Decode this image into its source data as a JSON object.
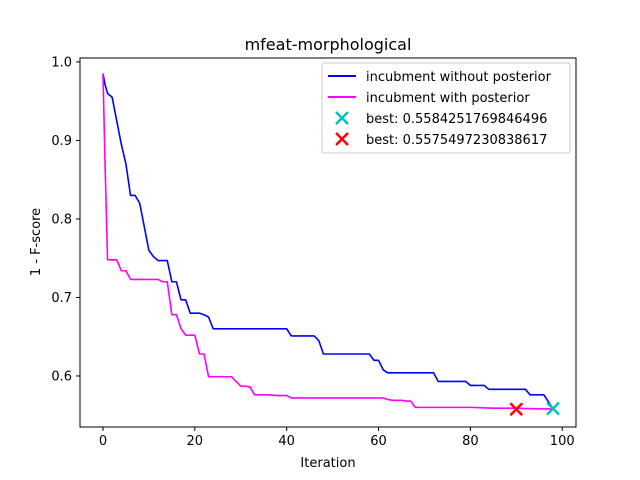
{
  "chart_data": {
    "type": "line",
    "title": "mfeat-morphological",
    "xlabel": "Iteration",
    "ylabel": "1 - F-score",
    "xlim": [
      -5,
      103
    ],
    "ylim": [
      0.535,
      1.005
    ],
    "xticks": [
      0,
      20,
      40,
      60,
      80,
      100
    ],
    "yticks": [
      0.6,
      0.7,
      0.8,
      0.9,
      1.0
    ],
    "xtick_labels": [
      "0",
      "20",
      "40",
      "60",
      "80",
      "100"
    ],
    "ytick_labels": [
      "0.6",
      "0.7",
      "0.8",
      "0.9",
      "1.0"
    ],
    "grid": false,
    "legend_position": "top-right",
    "series": [
      {
        "name": "incubment without posterior",
        "color": "#0000ff",
        "x": [
          0,
          0.5,
          1,
          2,
          3,
          4,
          5,
          6,
          7,
          8,
          9,
          10,
          11,
          12,
          13,
          14,
          15,
          16,
          17,
          18,
          19,
          20,
          21,
          22,
          23,
          24,
          25,
          30,
          35,
          40,
          41,
          45,
          46,
          47,
          48,
          50,
          55,
          58,
          59,
          60,
          61,
          62,
          65,
          70,
          72,
          73,
          75,
          78,
          79,
          80,
          83,
          84,
          85,
          88,
          90,
          92,
          93,
          95,
          96,
          98
        ],
        "y": [
          0.985,
          0.97,
          0.96,
          0.955,
          0.925,
          0.895,
          0.87,
          0.83,
          0.83,
          0.82,
          0.79,
          0.76,
          0.752,
          0.747,
          0.747,
          0.747,
          0.72,
          0.72,
          0.697,
          0.697,
          0.68,
          0.68,
          0.68,
          0.678,
          0.675,
          0.66,
          0.66,
          0.66,
          0.66,
          0.66,
          0.651,
          0.651,
          0.651,
          0.645,
          0.628,
          0.628,
          0.628,
          0.628,
          0.62,
          0.62,
          0.608,
          0.604,
          0.604,
          0.604,
          0.604,
          0.593,
          0.593,
          0.593,
          0.593,
          0.588,
          0.588,
          0.583,
          0.583,
          0.583,
          0.583,
          0.583,
          0.576,
          0.576,
          0.576,
          0.558
        ]
      },
      {
        "name": "incubment with posterior",
        "color": "#ff00ff",
        "x": [
          0,
          0.5,
          1,
          3,
          4,
          5,
          6,
          7,
          10,
          11,
          12,
          13,
          14,
          15,
          16,
          17,
          18,
          19,
          20,
          21,
          22,
          23,
          24,
          27,
          28,
          30,
          31,
          32,
          33,
          35,
          36,
          38,
          40,
          41,
          45,
          50,
          55,
          60,
          61,
          62,
          63,
          65,
          66,
          67,
          68,
          70,
          75,
          80,
          85,
          90,
          95,
          98
        ],
        "y": [
          0.985,
          0.86,
          0.748,
          0.748,
          0.734,
          0.734,
          0.723,
          0.723,
          0.723,
          0.723,
          0.723,
          0.72,
          0.72,
          0.678,
          0.678,
          0.66,
          0.652,
          0.652,
          0.652,
          0.628,
          0.628,
          0.599,
          0.599,
          0.599,
          0.599,
          0.587,
          0.587,
          0.586,
          0.576,
          0.576,
          0.576,
          0.575,
          0.575,
          0.572,
          0.572,
          0.572,
          0.572,
          0.572,
          0.572,
          0.57,
          0.569,
          0.569,
          0.568,
          0.568,
          0.56,
          0.56,
          0.56,
          0.56,
          0.559,
          0.559,
          0.558,
          0.558
        ]
      }
    ],
    "markers": [
      {
        "name": "best: 0.5584251769846496",
        "color": "#00bfbf",
        "x": 98,
        "y": 0.5584251769846496,
        "symbol": "x"
      },
      {
        "name": "best: 0.5575497230838617",
        "color": "#ff0000",
        "x": 90,
        "y": 0.5575497230838617,
        "symbol": "x"
      }
    ]
  }
}
